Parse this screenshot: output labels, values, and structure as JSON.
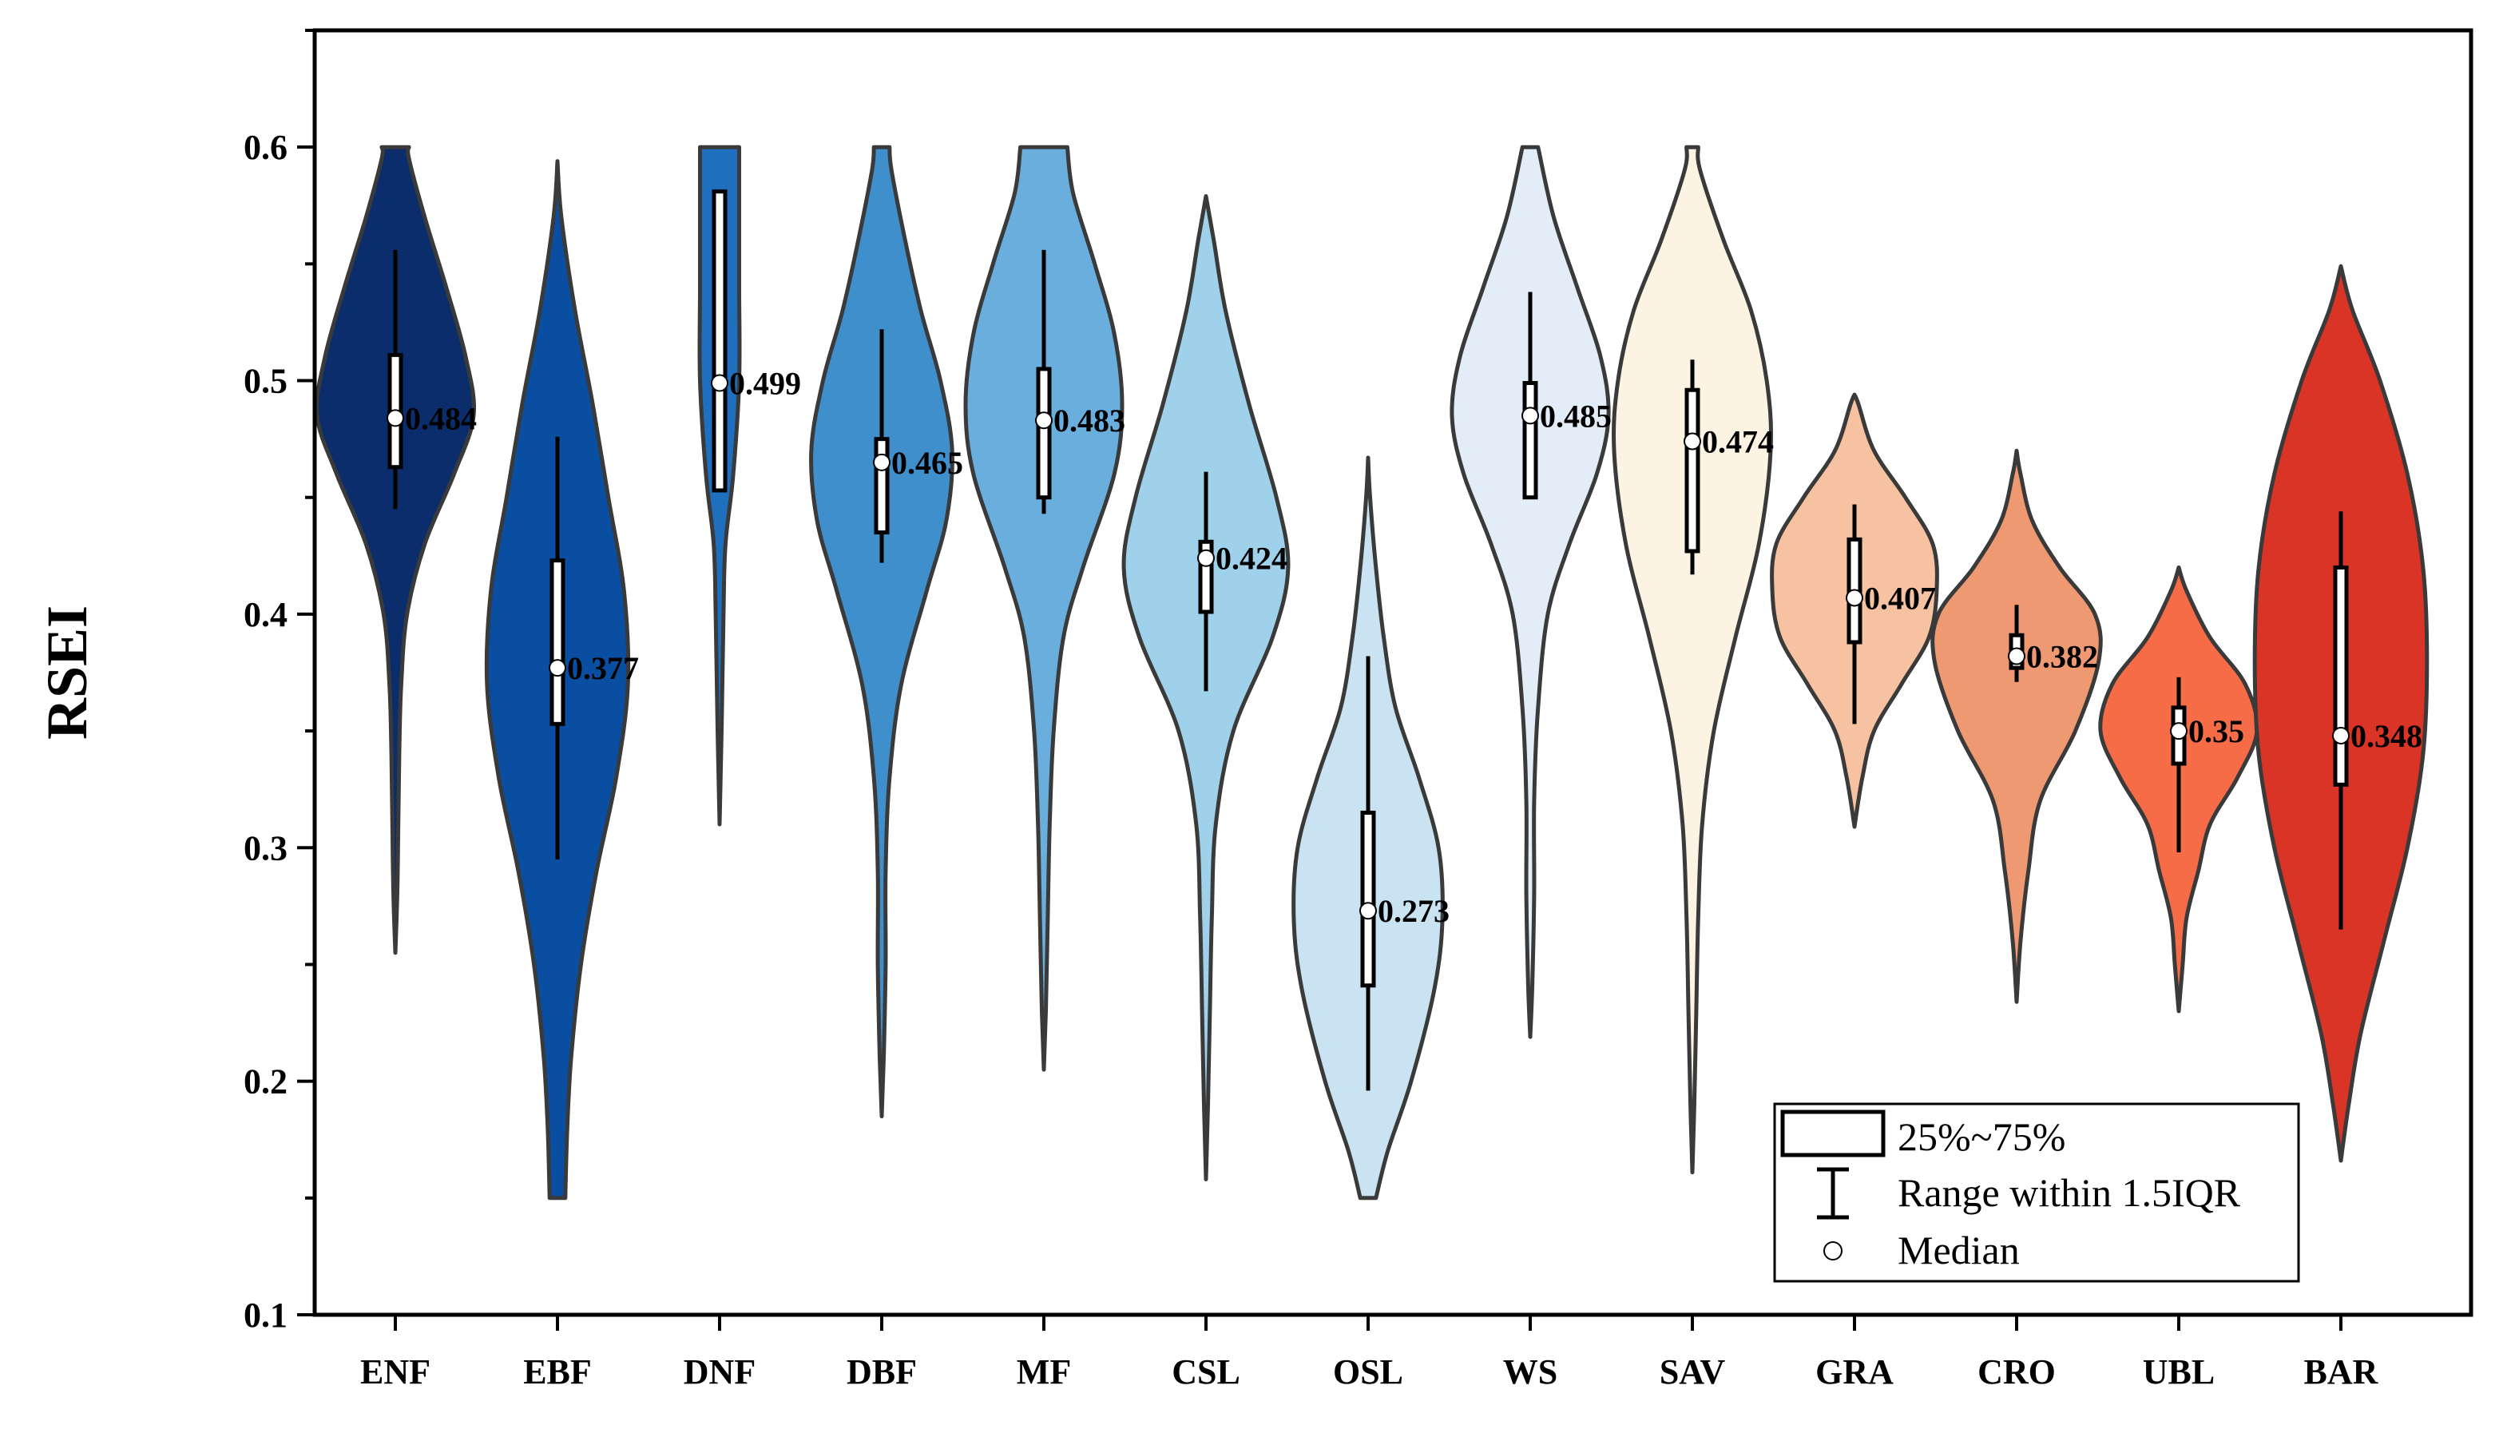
{
  "chart_data": {
    "type": "violin",
    "ylabel": "RSEI",
    "xlabel": "",
    "ylim": [
      0.1,
      0.65
    ],
    "y_ticks": [
      "0.1",
      "0.2",
      "0.3",
      "0.4",
      "0.5",
      "0.6"
    ],
    "grid": false,
    "legend_position": "bottom-right",
    "legend": {
      "box_label": "25%~75%",
      "whisker_label": "Range within 1.5IQR",
      "median_label": "Median"
    },
    "categories": [
      "ENF",
      "EBF",
      "DNF",
      "DBF",
      "MF",
      "CSL",
      "OSL",
      "WS",
      "SAV",
      "GRA",
      "CRO",
      "UBL",
      "BAR"
    ],
    "series": [
      {
        "category": "ENF",
        "median": 0.484,
        "median_label": "0.484",
        "q1": 0.463,
        "q3": 0.511,
        "whisker_low": 0.445,
        "whisker_high": 0.556,
        "min": 0.255,
        "max": 0.6,
        "color": "#0b2d6b",
        "profile": [
          [
            0.255,
            0.0
          ],
          [
            0.28,
            0.01
          ],
          [
            0.31,
            0.015
          ],
          [
            0.34,
            0.02
          ],
          [
            0.37,
            0.03
          ],
          [
            0.4,
            0.06
          ],
          [
            0.43,
            0.15
          ],
          [
            0.46,
            0.3
          ],
          [
            0.485,
            0.4
          ],
          [
            0.51,
            0.36
          ],
          [
            0.54,
            0.26
          ],
          [
            0.57,
            0.15
          ],
          [
            0.595,
            0.07
          ],
          [
            0.6,
            0.07
          ]
        ]
      },
      {
        "category": "EBF",
        "median": 0.377,
        "median_label": "0.377",
        "q1": 0.353,
        "q3": 0.423,
        "whisker_low": 0.295,
        "whisker_high": 0.476,
        "min": 0.15,
        "max": 0.594,
        "color": "#0a4ea2",
        "profile": [
          [
            0.15,
            0.04
          ],
          [
            0.18,
            0.05
          ],
          [
            0.21,
            0.07
          ],
          [
            0.25,
            0.12
          ],
          [
            0.29,
            0.2
          ],
          [
            0.33,
            0.3
          ],
          [
            0.37,
            0.36
          ],
          [
            0.41,
            0.34
          ],
          [
            0.45,
            0.26
          ],
          [
            0.49,
            0.18
          ],
          [
            0.53,
            0.09
          ],
          [
            0.57,
            0.02
          ],
          [
            0.594,
            0.0
          ]
        ]
      },
      {
        "category": "DNF",
        "median": 0.499,
        "median_label": "0.499",
        "q1": 0.453,
        "q3": 0.581,
        "whisker_low": 0.453,
        "whisker_high": 0.581,
        "min": 0.31,
        "max": 0.6,
        "color": "#1f6fbf",
        "profile": [
          [
            0.31,
            0.0
          ],
          [
            0.35,
            0.01
          ],
          [
            0.4,
            0.02
          ],
          [
            0.43,
            0.03
          ],
          [
            0.46,
            0.07
          ],
          [
            0.5,
            0.1
          ],
          [
            0.54,
            0.1
          ],
          [
            0.58,
            0.1
          ],
          [
            0.6,
            0.1
          ]
        ]
      },
      {
        "category": "DBF",
        "median": 0.465,
        "median_label": "0.465",
        "q1": 0.435,
        "q3": 0.475,
        "whisker_low": 0.422,
        "whisker_high": 0.522,
        "min": 0.185,
        "max": 0.6,
        "color": "#3f8fcc",
        "profile": [
          [
            0.185,
            0.0
          ],
          [
            0.21,
            0.01
          ],
          [
            0.25,
            0.02
          ],
          [
            0.29,
            0.02
          ],
          [
            0.33,
            0.04
          ],
          [
            0.37,
            0.1
          ],
          [
            0.41,
            0.23
          ],
          [
            0.44,
            0.33
          ],
          [
            0.47,
            0.36
          ],
          [
            0.5,
            0.3
          ],
          [
            0.53,
            0.2
          ],
          [
            0.56,
            0.12
          ],
          [
            0.59,
            0.05
          ],
          [
            0.6,
            0.04
          ]
        ]
      },
      {
        "category": "MF",
        "median": 0.483,
        "median_label": "0.483",
        "q1": 0.45,
        "q3": 0.505,
        "whisker_low": 0.443,
        "whisker_high": 0.556,
        "min": 0.205,
        "max": 0.6,
        "color": "#6aaedd",
        "profile": [
          [
            0.205,
            0.0
          ],
          [
            0.23,
            0.01
          ],
          [
            0.27,
            0.02
          ],
          [
            0.31,
            0.03
          ],
          [
            0.35,
            0.05
          ],
          [
            0.39,
            0.1
          ],
          [
            0.42,
            0.2
          ],
          [
            0.46,
            0.36
          ],
          [
            0.49,
            0.4
          ],
          [
            0.52,
            0.36
          ],
          [
            0.55,
            0.26
          ],
          [
            0.58,
            0.15
          ],
          [
            0.6,
            0.12
          ]
        ]
      },
      {
        "category": "CSL",
        "median": 0.424,
        "median_label": "0.424",
        "q1": 0.401,
        "q3": 0.431,
        "whisker_low": 0.367,
        "whisker_high": 0.461,
        "min": 0.158,
        "max": 0.579,
        "color": "#9fd1ea",
        "profile": [
          [
            0.158,
            0.0
          ],
          [
            0.19,
            0.01
          ],
          [
            0.23,
            0.02
          ],
          [
            0.27,
            0.03
          ],
          [
            0.31,
            0.05
          ],
          [
            0.35,
            0.14
          ],
          [
            0.39,
            0.34
          ],
          [
            0.42,
            0.42
          ],
          [
            0.45,
            0.36
          ],
          [
            0.49,
            0.22
          ],
          [
            0.53,
            0.1
          ],
          [
            0.56,
            0.04
          ],
          [
            0.579,
            0.0
          ]
        ]
      },
      {
        "category": "OSL",
        "median": 0.273,
        "median_label": "0.273",
        "q1": 0.241,
        "q3": 0.315,
        "whisker_low": 0.196,
        "whisker_high": 0.382,
        "min": 0.15,
        "max": 0.467,
        "color": "#c9e3f2",
        "profile": [
          [
            0.15,
            0.04
          ],
          [
            0.17,
            0.1
          ],
          [
            0.2,
            0.22
          ],
          [
            0.24,
            0.34
          ],
          [
            0.27,
            0.38
          ],
          [
            0.3,
            0.36
          ],
          [
            0.33,
            0.26
          ],
          [
            0.36,
            0.14
          ],
          [
            0.39,
            0.08
          ],
          [
            0.42,
            0.04
          ],
          [
            0.45,
            0.01
          ],
          [
            0.467,
            0.0
          ]
        ]
      },
      {
        "category": "WS",
        "median": 0.485,
        "median_label": "0.485",
        "q1": 0.45,
        "q3": 0.499,
        "whisker_low": 0.45,
        "whisker_high": 0.538,
        "min": 0.219,
        "max": 0.6,
        "color": "#e3edf7",
        "profile": [
          [
            0.219,
            0.0
          ],
          [
            0.24,
            0.01
          ],
          [
            0.28,
            0.02
          ],
          [
            0.32,
            0.02
          ],
          [
            0.36,
            0.04
          ],
          [
            0.4,
            0.09
          ],
          [
            0.43,
            0.2
          ],
          [
            0.46,
            0.34
          ],
          [
            0.485,
            0.4
          ],
          [
            0.51,
            0.36
          ],
          [
            0.54,
            0.24
          ],
          [
            0.57,
            0.12
          ],
          [
            0.6,
            0.04
          ]
        ]
      },
      {
        "category": "SAV",
        "median": 0.474,
        "median_label": "0.474",
        "q1": 0.427,
        "q3": 0.496,
        "whisker_low": 0.417,
        "whisker_high": 0.509,
        "min": 0.161,
        "max": 0.6,
        "color": "#fcf3e2",
        "profile": [
          [
            0.161,
            0.0
          ],
          [
            0.19,
            0.01
          ],
          [
            0.23,
            0.02
          ],
          [
            0.27,
            0.03
          ],
          [
            0.31,
            0.05
          ],
          [
            0.35,
            0.11
          ],
          [
            0.39,
            0.22
          ],
          [
            0.43,
            0.34
          ],
          [
            0.47,
            0.4
          ],
          [
            0.5,
            0.38
          ],
          [
            0.53,
            0.3
          ],
          [
            0.56,
            0.16
          ],
          [
            0.59,
            0.04
          ],
          [
            0.6,
            0.03
          ]
        ]
      },
      {
        "category": "GRA",
        "median": 0.407,
        "median_label": "0.407",
        "q1": 0.388,
        "q3": 0.432,
        "whisker_low": 0.353,
        "whisker_high": 0.447,
        "min": 0.309,
        "max": 0.494,
        "color": "#f6c2a2",
        "profile": [
          [
            0.309,
            0.0
          ],
          [
            0.33,
            0.04
          ],
          [
            0.35,
            0.1
          ],
          [
            0.37,
            0.24
          ],
          [
            0.39,
            0.38
          ],
          [
            0.41,
            0.42
          ],
          [
            0.43,
            0.4
          ],
          [
            0.45,
            0.26
          ],
          [
            0.47,
            0.1
          ],
          [
            0.49,
            0.02
          ],
          [
            0.494,
            0.0
          ]
        ]
      },
      {
        "category": "CRO",
        "median": 0.382,
        "median_label": "0.382",
        "q1": 0.377,
        "q3": 0.391,
        "whisker_low": 0.371,
        "whisker_high": 0.404,
        "min": 0.234,
        "max": 0.47,
        "color": "#ee9972",
        "profile": [
          [
            0.234,
            0.0
          ],
          [
            0.26,
            0.02
          ],
          [
            0.29,
            0.06
          ],
          [
            0.32,
            0.12
          ],
          [
            0.35,
            0.3
          ],
          [
            0.38,
            0.42
          ],
          [
            0.4,
            0.4
          ],
          [
            0.42,
            0.22
          ],
          [
            0.44,
            0.08
          ],
          [
            0.46,
            0.02
          ],
          [
            0.47,
            0.0
          ]
        ]
      },
      {
        "category": "UBL",
        "median": 0.35,
        "median_label": "0.35",
        "q1": 0.336,
        "q3": 0.36,
        "whisker_low": 0.298,
        "whisker_high": 0.373,
        "min": 0.23,
        "max": 0.42,
        "color": "#f56c47",
        "profile": [
          [
            0.23,
            0.0
          ],
          [
            0.25,
            0.02
          ],
          [
            0.27,
            0.04
          ],
          [
            0.29,
            0.1
          ],
          [
            0.31,
            0.16
          ],
          [
            0.33,
            0.3
          ],
          [
            0.35,
            0.4
          ],
          [
            0.37,
            0.34
          ],
          [
            0.39,
            0.16
          ],
          [
            0.41,
            0.04
          ],
          [
            0.42,
            0.0
          ]
        ]
      },
      {
        "category": "BAR",
        "median": 0.348,
        "median_label": "0.348",
        "q1": 0.327,
        "q3": 0.42,
        "whisker_low": 0.265,
        "whisker_high": 0.444,
        "min": 0.166,
        "max": 0.549,
        "color": "#d93425",
        "profile": [
          [
            0.166,
            0.0
          ],
          [
            0.19,
            0.04
          ],
          [
            0.22,
            0.1
          ],
          [
            0.26,
            0.22
          ],
          [
            0.3,
            0.34
          ],
          [
            0.34,
            0.42
          ],
          [
            0.38,
            0.44
          ],
          [
            0.42,
            0.42
          ],
          [
            0.46,
            0.34
          ],
          [
            0.5,
            0.2
          ],
          [
            0.53,
            0.06
          ],
          [
            0.549,
            0.0
          ]
        ]
      }
    ]
  }
}
